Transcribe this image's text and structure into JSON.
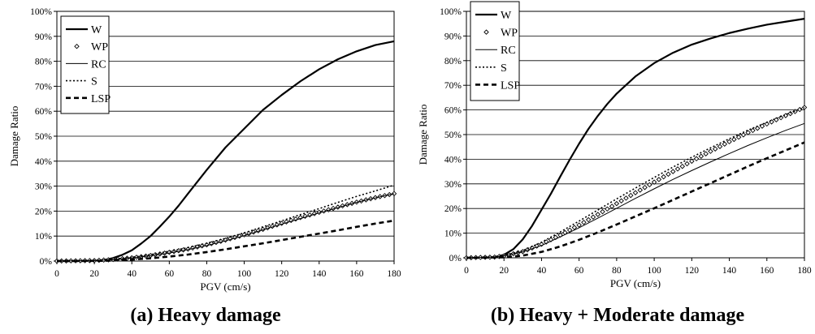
{
  "chart_data": [
    {
      "type": "line",
      "caption": "(a) Heavy damage",
      "xlabel": "PGV (cm/s)",
      "ylabel": "Damage Ratio",
      "xlim": [
        0,
        180
      ],
      "ylim": [
        0,
        100
      ],
      "x_ticks": [
        0,
        20,
        40,
        60,
        80,
        100,
        120,
        140,
        160,
        180
      ],
      "y_ticks": [
        "0%",
        "10%",
        "20%",
        "30%",
        "40%",
        "50%",
        "60%",
        "70%",
        "80%",
        "90%",
        "100%"
      ],
      "grid": "horizontal",
      "legend_position": "top-left",
      "series": [
        {
          "name": "W",
          "style": "thick-solid",
          "x": [
            0,
            10,
            20,
            25,
            30,
            35,
            40,
            45,
            50,
            55,
            60,
            65,
            70,
            80,
            90,
            100,
            110,
            120,
            130,
            140,
            150,
            160,
            170,
            180
          ],
          "y": [
            0,
            0,
            0.1,
            0.4,
            1.2,
            2.5,
            4.3,
            7,
            10,
            13.8,
            17.8,
            22.2,
            27,
            36.5,
            45.5,
            53,
            60.5,
            66.5,
            72,
            76.8,
            80.8,
            84,
            86.5,
            88
          ]
        },
        {
          "name": "WP",
          "style": "diamond-markers",
          "x": [
            0,
            20,
            30,
            40,
            50,
            60,
            70,
            80,
            90,
            100,
            110,
            120,
            130,
            140,
            150,
            160,
            170,
            180
          ],
          "y": [
            0,
            0.2,
            0.6,
            1.3,
            2.2,
            3.5,
            4.8,
            6.5,
            8.4,
            10.5,
            12.7,
            15.1,
            17.4,
            19.5,
            21.6,
            23.6,
            25.4,
            27
          ]
        },
        {
          "name": "RC",
          "style": "thin-solid",
          "x": [
            0,
            20,
            30,
            40,
            50,
            60,
            70,
            80,
            90,
            100,
            110,
            120,
            130,
            140,
            150,
            160,
            170,
            180
          ],
          "y": [
            0,
            0.2,
            0.6,
            1.2,
            2.1,
            3.2,
            4.6,
            6.2,
            8.1,
            10.2,
            12.5,
            14.8,
            17,
            19.3,
            21.4,
            23.5,
            25.3,
            27
          ]
        },
        {
          "name": "S",
          "style": "dotted",
          "x": [
            0,
            20,
            30,
            40,
            50,
            60,
            70,
            80,
            90,
            100,
            110,
            120,
            130,
            140,
            150,
            160,
            170,
            180
          ],
          "y": [
            0,
            0.2,
            0.7,
            1.5,
            2.6,
            3.9,
            5.4,
            7.1,
            9.1,
            11.3,
            13.7,
            16.1,
            18.6,
            21,
            23.5,
            25.9,
            28.1,
            30.4
          ]
        },
        {
          "name": "LSP",
          "style": "thick-dashed",
          "x": [
            0,
            20,
            30,
            40,
            50,
            60,
            70,
            80,
            90,
            100,
            110,
            120,
            130,
            140,
            150,
            160,
            170,
            180
          ],
          "y": [
            0,
            0.05,
            0.2,
            0.6,
            1.1,
            1.8,
            2.6,
            3.6,
            4.7,
            5.9,
            7.1,
            8.4,
            9.7,
            11,
            12.3,
            13.7,
            15,
            16.2
          ]
        }
      ]
    },
    {
      "type": "line",
      "caption": "(b) Heavy + Moderate damage",
      "xlabel": "PGV (cm/s)",
      "ylabel": "Damage Ratio",
      "xlim": [
        0,
        180
      ],
      "ylim": [
        0,
        100
      ],
      "x_ticks": [
        0,
        20,
        40,
        60,
        80,
        100,
        120,
        140,
        160,
        180
      ],
      "y_ticks": [
        "0%",
        "10%",
        "20%",
        "30%",
        "40%",
        "50%",
        "60%",
        "70%",
        "80%",
        "90%",
        "100%"
      ],
      "grid": "horizontal",
      "legend_position": "top-left",
      "series": [
        {
          "name": "W",
          "style": "thick-solid",
          "x": [
            0,
            10,
            15,
            20,
            25,
            30,
            35,
            40,
            45,
            50,
            55,
            60,
            65,
            70,
            75,
            80,
            90,
            100,
            110,
            120,
            130,
            140,
            150,
            160,
            170,
            180
          ],
          "y": [
            0,
            0,
            0.3,
            1.2,
            3.5,
            7.5,
            13,
            19.5,
            26,
            33,
            39.8,
            46.3,
            52.3,
            57.6,
            62.4,
            66.6,
            73.6,
            79,
            83.2,
            86.5,
            89,
            91.2,
            93,
            94.6,
            95.8,
            97
          ]
        },
        {
          "name": "WP",
          "style": "diamond-markers",
          "x": [
            0,
            15,
            20,
            30,
            40,
            50,
            60,
            70,
            80,
            90,
            100,
            110,
            120,
            130,
            140,
            150,
            160,
            170,
            180
          ],
          "y": [
            0,
            0.3,
            0.8,
            2.5,
            5.5,
            9.2,
            13.3,
            17.6,
            22,
            26.4,
            30.7,
            35,
            39.2,
            43.2,
            47.1,
            50.8,
            54.3,
            57.7,
            61
          ]
        },
        {
          "name": "RC",
          "style": "thin-solid",
          "x": [
            0,
            15,
            20,
            30,
            40,
            50,
            60,
            70,
            80,
            90,
            100,
            110,
            120,
            130,
            140,
            150,
            160,
            170,
            180
          ],
          "y": [
            0,
            0.3,
            0.8,
            2.4,
            5,
            8.5,
            12.2,
            16.1,
            20.1,
            24.1,
            28,
            31.8,
            35.4,
            38.9,
            42.3,
            45.6,
            48.7,
            51.7,
            54.5
          ]
        },
        {
          "name": "S",
          "style": "dotted",
          "x": [
            0,
            15,
            20,
            30,
            40,
            50,
            60,
            70,
            80,
            90,
            100,
            110,
            120,
            130,
            140,
            150,
            160,
            170,
            180
          ],
          "y": [
            0,
            0.3,
            0.9,
            2.9,
            6.3,
            10.5,
            14.9,
            19.4,
            23.9,
            28.3,
            32.6,
            36.8,
            40.8,
            44.6,
            48.3,
            51.8,
            55,
            58.1,
            61
          ]
        },
        {
          "name": "LSP",
          "style": "thick-dashed",
          "x": [
            0,
            20,
            30,
            40,
            50,
            60,
            70,
            80,
            90,
            100,
            110,
            120,
            130,
            140,
            150,
            160,
            170,
            180
          ],
          "y": [
            0,
            0.2,
            0.9,
            2.4,
            4.6,
            7.3,
            10.3,
            13.5,
            16.8,
            20.1,
            23.5,
            26.9,
            30.3,
            33.7,
            37.1,
            40.4,
            43.6,
            46.8
          ]
        }
      ]
    }
  ]
}
